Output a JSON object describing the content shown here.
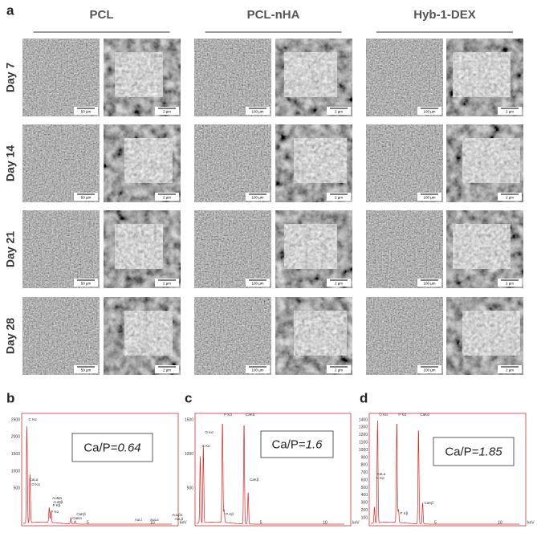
{
  "panels": [
    "a",
    "b",
    "c",
    "d"
  ],
  "columns": [
    "PCL",
    "PCL-nHA",
    "Hyb-1-DEX"
  ],
  "rows": [
    "Day 7",
    "Day 14",
    "Day 21",
    "Day 28"
  ],
  "scale_bars": [
    [
      [
        "50 µm",
        "2 µm"
      ],
      [
        "100 µm",
        "2 µm"
      ],
      [
        "100 µm",
        "2 µm"
      ]
    ],
    [
      [
        "50 µm",
        "2 µm"
      ],
      [
        "100 µm",
        "2 µm"
      ],
      [
        "100 µm",
        "2 µm"
      ]
    ],
    [
      [
        "50 µm",
        "2 µm"
      ],
      [
        "100 µm",
        "2 µm"
      ],
      [
        "100 µm",
        "2 µm"
      ]
    ],
    [
      [
        "50 µm",
        "2 µm"
      ],
      [
        "100 µm",
        "2 µm"
      ],
      [
        "100 µm",
        "2 µm"
      ]
    ]
  ],
  "spectra": [
    {
      "ratio_label": "Ca/P=",
      "ratio": "0.64",
      "yticks": [
        "2500",
        "2000",
        "1500",
        "1000",
        "500"
      ],
      "xticks": [
        "5",
        "10"
      ],
      "unit": "keV",
      "peaks": [
        "C Kα",
        "CaLα",
        "O Kα",
        "AuMα",
        "AuMβ",
        "P Kβ",
        "P Kα",
        "CaKβ",
        "CaKα",
        "AuLl",
        "AuLα",
        "AuLβ2",
        "AuLβ"
      ]
    },
    {
      "ratio_label": "Ca/P=",
      "ratio": "1.6",
      "yticks": [
        "1500",
        "1000",
        "500"
      ],
      "xticks": [
        "5",
        "10"
      ],
      "unit": "keV",
      "peaks": [
        "O Kα",
        "C Kα",
        "P Kα",
        "CaKα",
        "CaKβ",
        "P Kβ"
      ]
    },
    {
      "ratio_label": "Ca/P=",
      "ratio": "1.85",
      "yticks": [
        "1400",
        "1300",
        "1200",
        "1100",
        "1000",
        "900",
        "800",
        "700",
        "600",
        "500",
        "400",
        "300",
        "200",
        "100"
      ],
      "xticks": [
        "5",
        "10"
      ],
      "unit": "keV",
      "peaks": [
        "O Kα",
        "P Kα",
        "CaKα",
        "C Kα",
        "CaLα",
        "CaKβ",
        "P Kβ"
      ]
    }
  ]
}
